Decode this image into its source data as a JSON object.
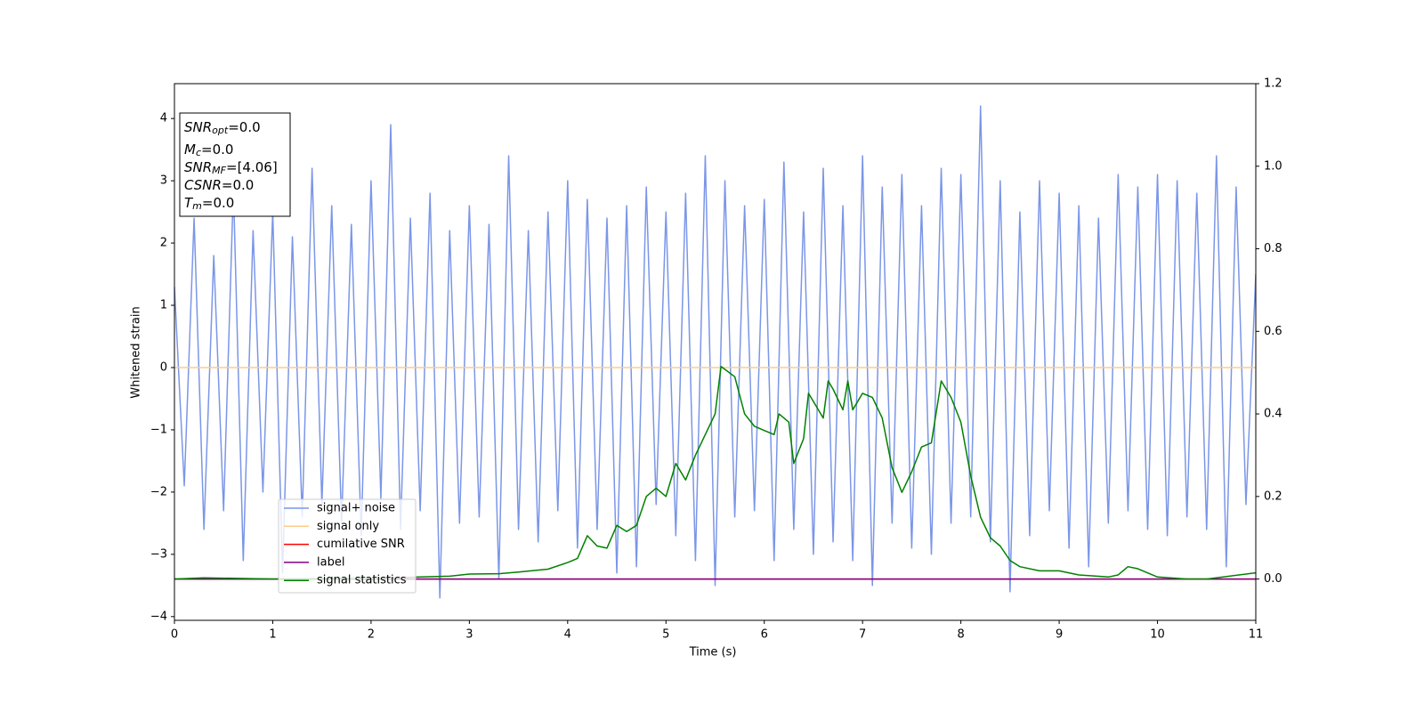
{
  "chart_data": {
    "type": "line",
    "xlabel": "Time (s)",
    "ylabel": "Whitened strain",
    "xlim": [
      0,
      11
    ],
    "xticks": [
      0,
      1,
      2,
      3,
      4,
      5,
      6,
      7,
      8,
      9,
      10,
      11
    ],
    "ylim": [
      -4.06,
      4.56
    ],
    "yticks": [
      -4,
      -3,
      -2,
      -1,
      0,
      1,
      2,
      3,
      4
    ],
    "y2lim": [
      -0.1,
      1.2
    ],
    "y2ticks": [
      {
        "value": 0,
        "label": "0.0"
      },
      {
        "value": 0.2,
        "label": "0.2"
      },
      {
        "value": 0.4,
        "label": "0.4"
      },
      {
        "value": 0.6,
        "label": "0.6"
      },
      {
        "value": 0.8,
        "label": "0.8"
      },
      {
        "value": 1.0,
        "label": "1.0"
      },
      {
        "value": 1.2,
        "label": "1.2"
      }
    ],
    "annotations": [
      {
        "base": "SNR",
        "sub": "opt",
        "rest": "=0.0"
      },
      {
        "base": "M",
        "sub": "c",
        "rest": "=0.0"
      },
      {
        "base": "SNR",
        "sub": "MF",
        "rest": "=[4.06]"
      },
      {
        "base": "CSNR",
        "rest": "=0.0"
      },
      {
        "base": "T",
        "sub": "m",
        "rest": "=0.0"
      }
    ],
    "series": [
      {
        "name": "signal+ noise",
        "color": "#7b96e8",
        "x": [
          0,
          0.1,
          0.2,
          0.3,
          0.4,
          0.5,
          0.6,
          0.7,
          0.8,
          0.9,
          1,
          1.1,
          1.2,
          1.3,
          1.4,
          1.5,
          1.6,
          1.7,
          1.8,
          1.9,
          2,
          2.1,
          2.2,
          2.3,
          2.4,
          2.5,
          2.6,
          2.7,
          2.8,
          2.9,
          3,
          3.1,
          3.2,
          3.3,
          3.4,
          3.5,
          3.6,
          3.7,
          3.8,
          3.9,
          4,
          4.1,
          4.2,
          4.3,
          4.4,
          4.5,
          4.6,
          4.7,
          4.8,
          4.9,
          5,
          5.1,
          5.2,
          5.3,
          5.4,
          5.5,
          5.6,
          5.7,
          5.8,
          5.9,
          6,
          6.1,
          6.2,
          6.3,
          6.4,
          6.5,
          6.6,
          6.7,
          6.8,
          6.9,
          7,
          7.1,
          7.2,
          7.3,
          7.4,
          7.5,
          7.6,
          7.7,
          7.8,
          7.9,
          8,
          8.1,
          8.2,
          8.3,
          8.4,
          8.5,
          8.6,
          8.7,
          8.8,
          8.9,
          9,
          9.1,
          9.2,
          9.3,
          9.4,
          9.5,
          9.6,
          9.7,
          9.8,
          9.9,
          10,
          10.1,
          10.2,
          10.3,
          10.4,
          10.5,
          10.6,
          10.7,
          10.8,
          10.9,
          11
        ],
        "values": [
          1.3,
          -1.9,
          2.4,
          -2.6,
          1.8,
          -2.3,
          2.9,
          -3.1,
          2.2,
          -2.0,
          2.5,
          -3.3,
          2.1,
          -2.4,
          3.2,
          -2.2,
          2.6,
          -2.5,
          2.3,
          -2.7,
          3.0,
          -2.1,
          3.9,
          -2.6,
          2.4,
          -2.3,
          2.8,
          -3.7,
          2.2,
          -2.5,
          2.6,
          -2.4,
          2.3,
          -3.4,
          3.4,
          -2.6,
          2.2,
          -2.8,
          2.5,
          -2.3,
          3.0,
          -2.9,
          2.7,
          -2.6,
          2.4,
          -3.3,
          2.6,
          -3.2,
          2.9,
          -2.2,
          2.5,
          -2.7,
          2.8,
          -3.1,
          3.4,
          -3.5,
          3.0,
          -2.4,
          2.6,
          -2.3,
          2.7,
          -3.1,
          3.3,
          -2.6,
          2.5,
          -3.0,
          3.2,
          -2.8,
          2.6,
          -3.1,
          3.4,
          -3.5,
          2.9,
          -2.5,
          3.1,
          -2.9,
          2.6,
          -3.0,
          3.2,
          -2.5,
          3.1,
          -2.4,
          4.2,
          -2.8,
          3.0,
          -3.6,
          2.5,
          -2.7,
          3.0,
          -2.3,
          2.8,
          -2.9,
          2.6,
          -3.2,
          2.4,
          -2.5,
          3.1,
          -2.3,
          2.9,
          -2.6,
          3.1,
          -2.7,
          3.0,
          -2.4,
          2.8,
          -2.6,
          3.4,
          -3.2,
          2.9,
          -2.2,
          1.5
        ]
      },
      {
        "name": "signal only",
        "color": "#ffcc88",
        "x": [
          0,
          11
        ],
        "values": [
          0,
          0
        ]
      },
      {
        "name": "cumilative SNR",
        "color": "#ff0000",
        "axis": "y2",
        "x": [
          0,
          11
        ],
        "values": [
          0,
          0
        ]
      },
      {
        "name": "label",
        "color": "#800080",
        "axis": "y2",
        "x": [
          0,
          11
        ],
        "values": [
          0,
          0
        ]
      },
      {
        "name": "signal statistics",
        "color": "#008000",
        "axis": "y2",
        "x": [
          0,
          0.3,
          1,
          2,
          2.5,
          2.8,
          3.0,
          3.3,
          3.5,
          3.8,
          4.0,
          4.1,
          4.2,
          4.3,
          4.4,
          4.5,
          4.6,
          4.7,
          4.8,
          4.9,
          5.0,
          5.1,
          5.2,
          5.3,
          5.4,
          5.5,
          5.56,
          5.7,
          5.8,
          5.9,
          6.0,
          6.1,
          6.15,
          6.25,
          6.3,
          6.4,
          6.45,
          6.6,
          6.65,
          6.7,
          6.8,
          6.85,
          6.9,
          7.0,
          7.1,
          7.2,
          7.3,
          7.4,
          7.5,
          7.6,
          7.7,
          7.8,
          7.9,
          8.0,
          8.1,
          8.2,
          8.3,
          8.4,
          8.5,
          8.6,
          8.8,
          9.0,
          9.2,
          9.5,
          9.6,
          9.7,
          9.8,
          10.0,
          10.3,
          10.5,
          11
        ],
        "values": [
          0,
          0.003,
          0,
          0.001,
          0.005,
          0.007,
          0.012,
          0.013,
          0.017,
          0.024,
          0.04,
          0.05,
          0.105,
          0.08,
          0.075,
          0.13,
          0.115,
          0.13,
          0.2,
          0.22,
          0.2,
          0.28,
          0.24,
          0.3,
          0.35,
          0.4,
          0.515,
          0.49,
          0.4,
          0.37,
          0.36,
          0.35,
          0.4,
          0.38,
          0.28,
          0.34,
          0.45,
          0.39,
          0.48,
          0.46,
          0.41,
          0.48,
          0.41,
          0.45,
          0.44,
          0.39,
          0.27,
          0.21,
          0.26,
          0.32,
          0.33,
          0.48,
          0.44,
          0.38,
          0.25,
          0.15,
          0.1,
          0.08,
          0.045,
          0.03,
          0.02,
          0.02,
          0.01,
          0.005,
          0.01,
          0.03,
          0.025,
          0.005,
          0,
          0,
          0.015
        ]
      }
    ]
  }
}
